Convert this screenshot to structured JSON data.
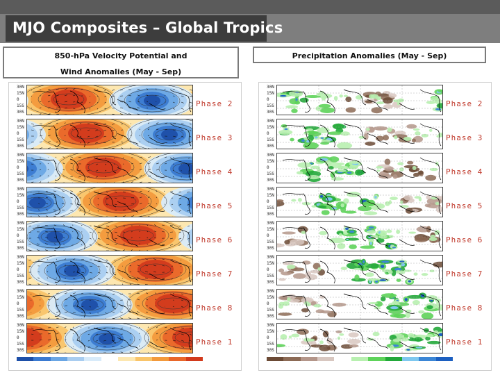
{
  "slide": {
    "title": "MJO Composites – Global Tropics"
  },
  "panels": {
    "left_header": "850-hPa Velocity Potential and Wind Anomalies (May - Sep)",
    "right_header": "Precipitation Anomalies (May - Sep)",
    "latitude_ticks": [
      "30N",
      "15N",
      "0",
      "15S",
      "30S"
    ],
    "phases": [
      "Phase 2",
      "Phase 3",
      "Phase 4",
      "Phase 5",
      "Phase 6",
      "Phase 7",
      "Phase 8",
      "Phase 1"
    ]
  },
  "colors": {
    "vp_negative": [
      "#1d4fa8",
      "#3a7ad1",
      "#6aa6e4",
      "#a9cdf0",
      "#d8ebfa"
    ],
    "vp_positive": [
      "#fde7b0",
      "#f9c46a",
      "#f39a3c",
      "#e9672a",
      "#d23a1c"
    ],
    "precip_dry": [
      "#6b4a35",
      "#8c6a55",
      "#b4968a",
      "#d8c7c0"
    ],
    "precip_wet": [
      "#b8f0b0",
      "#5ed35a",
      "#22a83a",
      "#7ec8ef",
      "#3b86d6",
      "#1c5fc0"
    ],
    "phase_label": "#c0392b"
  }
}
